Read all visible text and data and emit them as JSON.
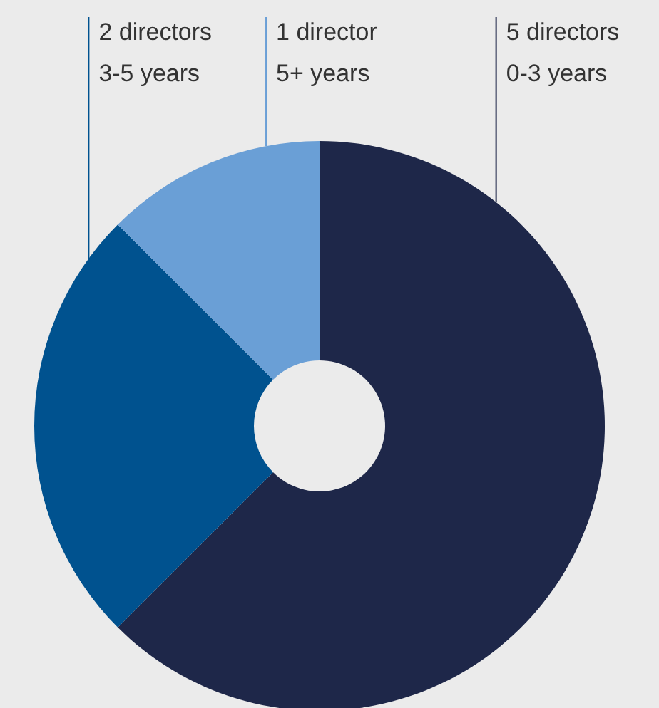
{
  "chart_data": {
    "type": "donut",
    "categories": [
      "0-3 years",
      "3-5 years",
      "5+ years"
    ],
    "values": [
      5,
      2,
      1
    ],
    "value_labels": [
      "5 directors",
      "2 directors",
      "1 director"
    ],
    "colors": [
      "#1e2749",
      "#00528f",
      "#6a9fd6"
    ]
  }
}
